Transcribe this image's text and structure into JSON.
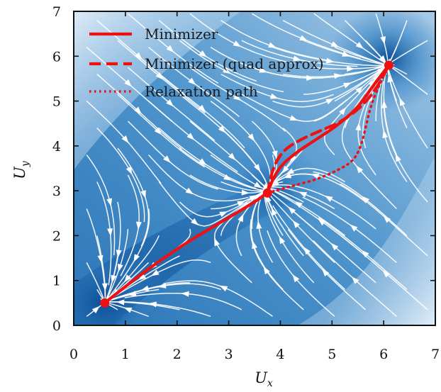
{
  "chart_data": {
    "type": "streamplot",
    "title": "",
    "xlabel": "U",
    "xlabel_sub": "x",
    "ylabel": "U",
    "ylabel_sub": "y",
    "xlim": [
      0,
      7
    ],
    "ylim": [
      0,
      7
    ],
    "xticks": [
      "0",
      "1",
      "2",
      "3",
      "4",
      "5",
      "6",
      "7"
    ],
    "yticks": [
      "0",
      "1",
      "2",
      "3",
      "4",
      "5",
      "6",
      "7"
    ],
    "xtick_values": [
      0,
      1,
      2,
      3,
      4,
      5,
      6,
      7
    ],
    "ytick_values": [
      0,
      1,
      2,
      3,
      4,
      5,
      6,
      7
    ],
    "legend_position": "top-left",
    "background_field": {
      "colormap": "blues",
      "low_color": "#e8f1fb",
      "high_color": "#08306b",
      "minima": [
        {
          "x": 0.6,
          "y": 0.5
        },
        {
          "x": 3.75,
          "y": 2.95
        },
        {
          "x": 6.1,
          "y": 5.8
        }
      ]
    },
    "points": [
      {
        "x": 0.6,
        "y": 0.5
      },
      {
        "x": 3.75,
        "y": 2.95
      },
      {
        "x": 6.1,
        "y": 5.8
      }
    ],
    "series": [
      {
        "name": "Minimizer",
        "style": "solid",
        "color": "#ee1111",
        "x": [
          0.6,
          1.2,
          1.8,
          2.4,
          3.0,
          3.5,
          3.75,
          3.85,
          4.0,
          4.3,
          4.7,
          5.1,
          5.5,
          5.8,
          6.1
        ],
        "y": [
          0.5,
          1.05,
          1.55,
          2.0,
          2.4,
          2.75,
          2.95,
          3.25,
          3.55,
          3.85,
          4.15,
          4.45,
          4.85,
          5.35,
          5.8
        ]
      },
      {
        "name": "Minimizer (quad approx)",
        "style": "dashed",
        "color": "#ee1111",
        "x": [
          3.75,
          3.85,
          4.05,
          4.4,
          4.8,
          5.2,
          5.6,
          5.9,
          6.1
        ],
        "y": [
          2.95,
          3.5,
          3.9,
          4.15,
          4.35,
          4.55,
          4.9,
          5.35,
          5.8
        ]
      },
      {
        "name": "Relaxation path",
        "style": "dotted",
        "color": "#ee1111",
        "x": [
          3.75,
          4.2,
          4.7,
          5.1,
          5.4,
          5.55,
          5.65,
          5.75,
          5.95,
          6.1
        ],
        "y": [
          2.95,
          3.1,
          3.25,
          3.45,
          3.65,
          3.95,
          4.4,
          4.9,
          5.45,
          5.8
        ]
      }
    ]
  }
}
